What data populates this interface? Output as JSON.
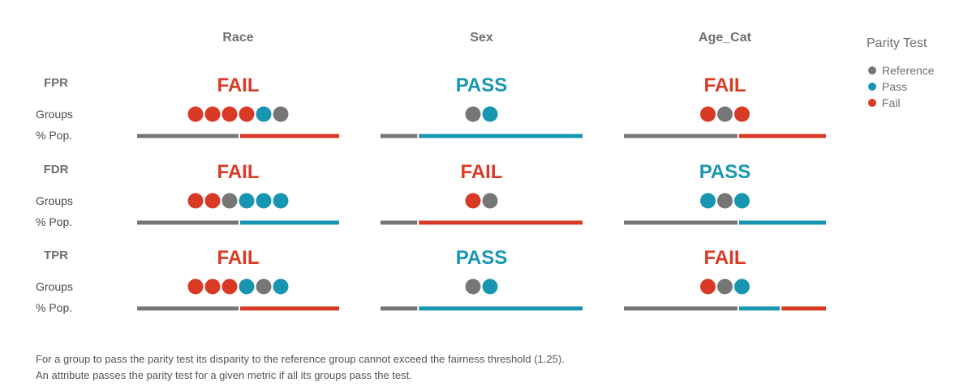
{
  "chart_data": {
    "type": "parity-grid",
    "columns": [
      "Race",
      "Sex",
      "Age_Cat"
    ],
    "row_labels": {
      "groups": "Groups",
      "population": "% Pop."
    },
    "legend": {
      "title": "Parity Test",
      "items": [
        {
          "key": "ref",
          "label": "Reference"
        },
        {
          "key": "pass",
          "label": "Pass"
        },
        {
          "key": "fail",
          "label": "Fail"
        }
      ]
    },
    "colors": {
      "ref": "#767676",
      "pass": "#1896b1",
      "fail": "#d93a26"
    },
    "metrics": [
      {
        "name": "FPR",
        "cells": [
          {
            "result": "FAIL",
            "groups": [
              "fail",
              "fail",
              "fail",
              "fail",
              "pass",
              "ref"
            ],
            "population": [
              {
                "status": "ref",
                "share": 0.51
              },
              {
                "status": "fail",
                "share": 0.49
              }
            ]
          },
          {
            "result": "PASS",
            "groups": [
              "ref",
              "pass"
            ],
            "population": [
              {
                "status": "ref",
                "share": 0.19
              },
              {
                "status": "pass",
                "share": 0.81
              }
            ]
          },
          {
            "result": "FAIL",
            "groups": [
              "fail",
              "ref",
              "fail"
            ],
            "population": [
              {
                "status": "ref",
                "share": 0.57
              },
              {
                "status": "fail",
                "share": 0.43
              }
            ]
          }
        ]
      },
      {
        "name": "FDR",
        "cells": [
          {
            "result": "FAIL",
            "groups": [
              "fail",
              "fail",
              "ref",
              "pass",
              "pass",
              "pass"
            ],
            "population": [
              {
                "status": "ref",
                "share": 0.51
              },
              {
                "status": "pass",
                "share": 0.49
              }
            ]
          },
          {
            "result": "FAIL",
            "groups": [
              "fail",
              "ref"
            ],
            "population": [
              {
                "status": "ref",
                "share": 0.19
              },
              {
                "status": "fail",
                "share": 0.81
              }
            ]
          },
          {
            "result": "PASS",
            "groups": [
              "pass",
              "ref",
              "pass"
            ],
            "population": [
              {
                "status": "ref",
                "share": 0.57
              },
              {
                "status": "pass",
                "share": 0.43
              }
            ]
          }
        ]
      },
      {
        "name": "TPR",
        "cells": [
          {
            "result": "FAIL",
            "groups": [
              "fail",
              "fail",
              "fail",
              "pass",
              "ref",
              "pass"
            ],
            "population": [
              {
                "status": "ref",
                "share": 0.51
              },
              {
                "status": "fail",
                "share": 0.49
              }
            ]
          },
          {
            "result": "PASS",
            "groups": [
              "ref",
              "pass"
            ],
            "population": [
              {
                "status": "ref",
                "share": 0.19
              },
              {
                "status": "pass",
                "share": 0.81
              }
            ]
          },
          {
            "result": "FAIL",
            "groups": [
              "fail",
              "ref",
              "pass"
            ],
            "population": [
              {
                "status": "ref",
                "share": 0.57
              },
              {
                "status": "pass",
                "share": 0.21
              },
              {
                "status": "fail",
                "share": 0.22
              }
            ]
          }
        ]
      }
    ]
  },
  "footnote": {
    "line1": "For a group to pass the parity test its disparity to the reference group cannot exceed the fairness threshold (1.25).",
    "line2": "An attribute passes the parity test for a given metric if all its groups pass the test."
  }
}
